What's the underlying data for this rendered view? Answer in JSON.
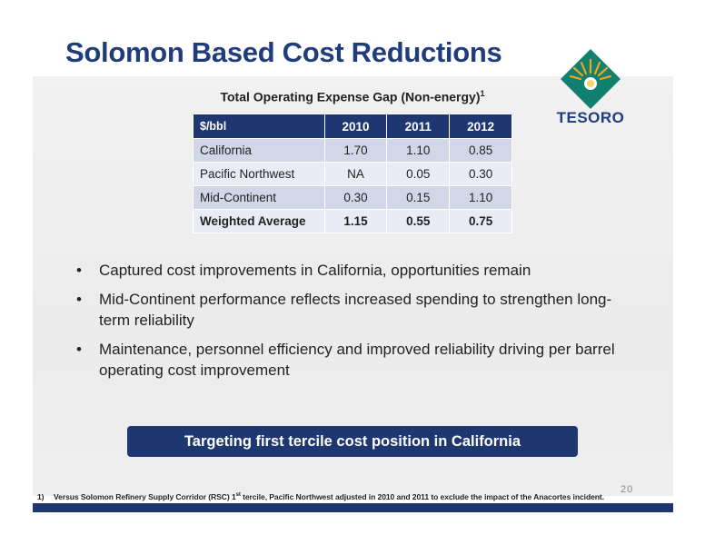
{
  "slide": {
    "title": "Solomon Based Cost Reductions",
    "page_number": "20"
  },
  "logo": {
    "text": "TESORO",
    "icon": "tesoro-sunburst-diamond-icon",
    "colors": {
      "diamond": "#12806e",
      "sun": "#f2a51c",
      "text": "#1f3d7a"
    }
  },
  "table": {
    "title": "Total Operating Expense Gap (Non-energy)",
    "title_footnote_mark": "1",
    "headers": [
      "$/bbl",
      "2010",
      "2011",
      "2012"
    ],
    "rows": [
      {
        "label": "California",
        "values": [
          "1.70",
          "1.10",
          "0.85"
        ]
      },
      {
        "label": "Pacific Northwest",
        "values": [
          "NA",
          "0.05",
          "0.30"
        ]
      },
      {
        "label": "Mid-Continent",
        "values": [
          "0.30",
          "0.15",
          "1.10"
        ]
      },
      {
        "label": "Weighted Average",
        "values": [
          "1.15",
          "0.55",
          "0.75"
        ]
      }
    ]
  },
  "bullets": [
    "Captured cost improvements in California, opportunities remain",
    "Mid-Continent performance reflects increased spending to strengthen long-term reliability",
    "Maintenance, personnel efficiency and improved reliability driving per barrel operating cost improvement"
  ],
  "banner": "Targeting first tercile cost position in California",
  "footnote": {
    "number": "1)",
    "text_before_sup": "Versus Solomon Refinery Supply Corridor (RSC) 1",
    "sup": "st",
    "text_after_sup": " tercile, Pacific Northwest adjusted in 2010 and 2011 to exclude the impact of the Anacortes incident."
  },
  "colors": {
    "navy": "#1f3770",
    "title": "#1f3d7a",
    "row_dark": "#d1d7e7",
    "row_light": "#e9ecf4"
  }
}
